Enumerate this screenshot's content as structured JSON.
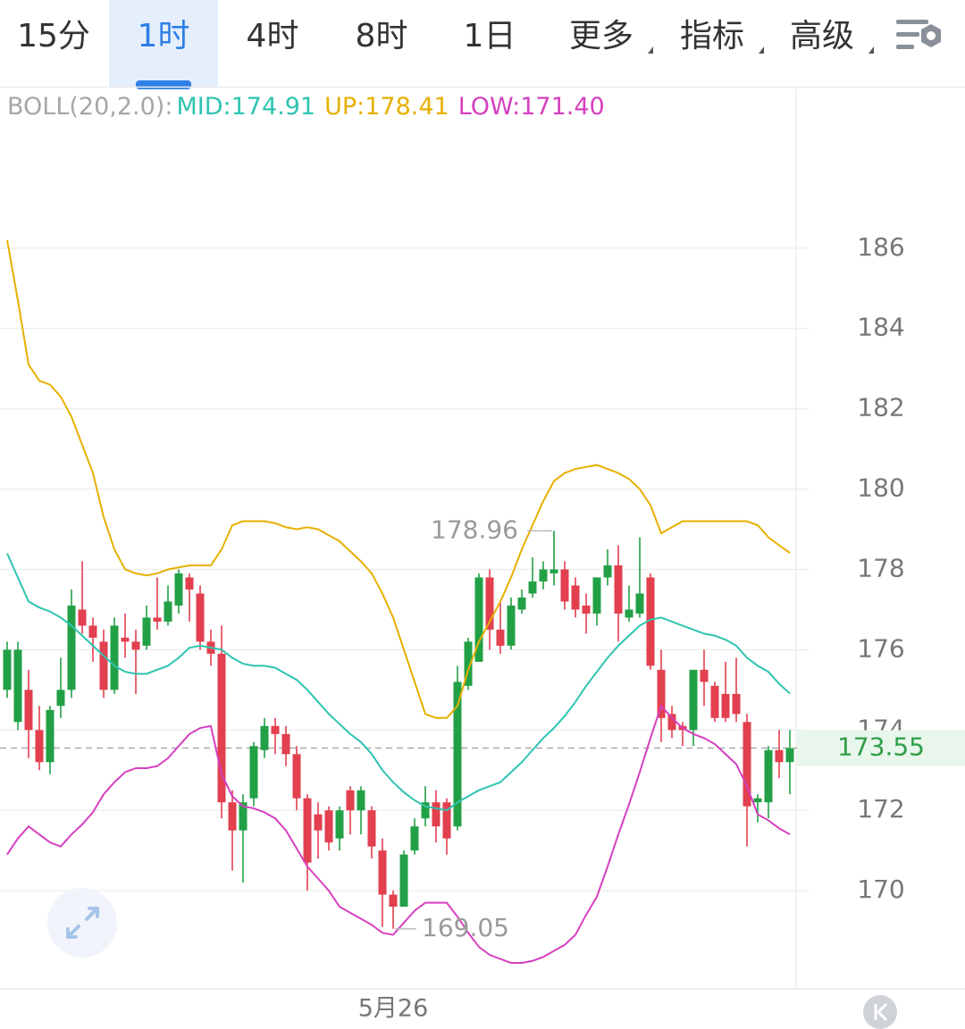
{
  "tabs": [
    {
      "label": "15分"
    },
    {
      "label": "1时"
    },
    {
      "label": "4时"
    },
    {
      "label": "8时"
    },
    {
      "label": "1日"
    },
    {
      "label": "更多",
      "dropdown": true
    },
    {
      "label": "指标",
      "dropdown": true
    },
    {
      "label": "高级",
      "dropdown": true
    }
  ],
  "active_tab": 1,
  "chart_data": {
    "type": "candlestick",
    "indicator": {
      "label": "BOLL(20,2.0):",
      "items": [
        {
          "name": "MID:",
          "value": 174.91,
          "color": "#2ec4b0"
        },
        {
          "name": "UP:",
          "value": 178.41,
          "color": "#e6b000"
        },
        {
          "name": "LOW:",
          "value": 171.4,
          "value_label": "171.40",
          "color": "#d63fbf"
        }
      ]
    },
    "categories": [
      null,
      null,
      null,
      null,
      null,
      null,
      null,
      null,
      null,
      null,
      null,
      null,
      null,
      null,
      null,
      null,
      null,
      null,
      null,
      null,
      null,
      null,
      null,
      null,
      null,
      null,
      null,
      null,
      null,
      null,
      null,
      null,
      null,
      null,
      null,
      null,
      "5月26",
      null,
      null,
      null,
      null,
      null,
      null,
      null,
      null,
      null,
      null,
      null,
      null,
      null,
      null,
      null,
      null,
      null,
      null,
      null,
      null,
      null,
      null,
      null,
      null,
      null,
      null,
      null,
      null,
      null,
      null,
      null,
      null,
      null,
      null,
      null,
      null,
      null
    ],
    "open": [
      175.0,
      174.2,
      175.0,
      174.0,
      173.2,
      174.6,
      175.0,
      177.0,
      176.6,
      176.2,
      175.0,
      176.3,
      176.2,
      176.1,
      176.8,
      176.7,
      177.1,
      177.8,
      177.4,
      176.2,
      175.9,
      172.2,
      171.5,
      172.3,
      173.5,
      174.1,
      173.9,
      173.4,
      172.3,
      171.9,
      172.0,
      171.3,
      172.5,
      172.0,
      172.0,
      171.0,
      169.9,
      169.6,
      171.0,
      171.8,
      172.2,
      172.2,
      171.6,
      175.1,
      175.7,
      177.8,
      176.5,
      176.1,
      177.0,
      177.4,
      177.7,
      177.9,
      178.0,
      177.6,
      177.1,
      176.9,
      177.8,
      178.1,
      176.8,
      176.9,
      177.8,
      175.5,
      174.4,
      174.1,
      174.0,
      175.5,
      175.1,
      174.9,
      174.9,
      174.2,
      172.2,
      172.2,
      173.5,
      173.2
    ],
    "high": [
      176.2,
      176.2,
      175.5,
      174.6,
      174.6,
      175.8,
      177.5,
      178.2,
      176.8,
      176.5,
      176.8,
      176.9,
      176.5,
      177.1,
      177.8,
      177.6,
      178.0,
      177.9,
      177.6,
      176.5,
      176.6,
      172.5,
      172.4,
      173.7,
      174.3,
      174.3,
      174.1,
      173.6,
      172.4,
      172.2,
      172.1,
      172.1,
      172.6,
      172.6,
      172.1,
      171.3,
      170.0,
      171.0,
      171.8,
      172.6,
      172.5,
      172.3,
      175.6,
      176.3,
      177.9,
      178.0,
      177.2,
      177.3,
      177.5,
      178.3,
      178.2,
      178.96,
      178.2,
      177.8,
      177.4,
      177.8,
      178.5,
      178.6,
      177.6,
      178.8,
      177.9,
      176.0,
      174.6,
      174.2,
      175.5,
      176.0,
      175.2,
      175.7,
      175.8,
      174.4,
      172.4,
      173.6,
      174.0,
      174.0
    ],
    "low": [
      174.8,
      174.0,
      173.3,
      173.0,
      172.9,
      174.3,
      174.8,
      176.4,
      175.7,
      174.8,
      174.9,
      175.8,
      174.9,
      176.0,
      176.5,
      176.6,
      176.9,
      176.7,
      176.0,
      175.6,
      171.8,
      170.5,
      170.2,
      172.1,
      173.3,
      173.4,
      173.1,
      172.0,
      170.0,
      170.8,
      171.0,
      171.0,
      171.4,
      171.4,
      170.8,
      169.1,
      169.05,
      169.6,
      170.9,
      171.6,
      171.2,
      170.9,
      171.5,
      175.0,
      175.7,
      176.0,
      175.9,
      176.0,
      176.9,
      177.3,
      177.5,
      177.6,
      177.0,
      176.8,
      176.4,
      176.6,
      177.6,
      176.2,
      176.7,
      176.8,
      175.5,
      173.7,
      173.8,
      173.6,
      173.6,
      174.6,
      174.2,
      174.2,
      174.2,
      171.1,
      171.7,
      171.8,
      172.8,
      172.4
    ],
    "close": [
      176.0,
      176.0,
      174.0,
      173.2,
      174.5,
      175.0,
      177.1,
      176.6,
      176.3,
      175.0,
      176.6,
      176.2,
      176.0,
      176.8,
      176.7,
      177.2,
      177.9,
      177.5,
      176.2,
      175.9,
      172.2,
      171.5,
      172.2,
      173.6,
      174.1,
      173.9,
      173.4,
      172.3,
      170.7,
      171.5,
      171.2,
      172.0,
      172.0,
      172.5,
      171.1,
      169.9,
      169.6,
      170.9,
      171.6,
      172.2,
      171.6,
      171.3,
      175.2,
      176.2,
      177.8,
      176.5,
      176.1,
      177.1,
      177.3,
      177.7,
      178.0,
      178.0,
      177.2,
      177.0,
      176.9,
      177.8,
      178.1,
      176.9,
      177.0,
      177.4,
      175.6,
      174.3,
      174.0,
      174.0,
      175.5,
      175.2,
      174.3,
      174.3,
      174.4,
      172.1,
      172.3,
      173.5,
      173.2,
      173.55
    ],
    "up_color": "#22a046",
    "down_color": "#e23f4f",
    "series": [
      {
        "name": "UP",
        "color": "#e6b000",
        "values": [
          186.2,
          184.7,
          183.1,
          182.7,
          182.6,
          182.3,
          181.8,
          181.1,
          180.4,
          179.3,
          178.5,
          178.0,
          177.9,
          177.85,
          177.9,
          178.0,
          178.05,
          178.1,
          178.1,
          178.1,
          178.5,
          179.1,
          179.2,
          179.2,
          179.2,
          179.15,
          179.05,
          179.0,
          179.05,
          179.0,
          178.85,
          178.7,
          178.45,
          178.2,
          177.9,
          177.4,
          176.8,
          176.0,
          175.2,
          174.4,
          174.3,
          174.3,
          174.6,
          175.5,
          176.2,
          176.7,
          177.2,
          177.8,
          178.5,
          179.1,
          179.7,
          180.2,
          180.4,
          180.5,
          180.55,
          180.6,
          180.5,
          180.4,
          180.25,
          180.0,
          179.6,
          178.9,
          179.05,
          179.2,
          179.2,
          179.2,
          179.2,
          179.2,
          179.2,
          179.2,
          179.1,
          178.8,
          178.6,
          178.41
        ]
      },
      {
        "name": "MID",
        "color": "#2ec4b0",
        "values": [
          178.4,
          177.8,
          177.2,
          177.05,
          176.95,
          176.8,
          176.6,
          176.35,
          176.1,
          175.85,
          175.6,
          175.45,
          175.4,
          175.4,
          175.5,
          175.6,
          175.8,
          176.05,
          176.1,
          176.05,
          176.0,
          175.8,
          175.65,
          175.6,
          175.6,
          175.55,
          175.4,
          175.25,
          175.0,
          174.7,
          174.4,
          174.15,
          173.9,
          173.7,
          173.4,
          173.0,
          172.7,
          172.45,
          172.25,
          172.1,
          172.05,
          172.0,
          172.2,
          172.35,
          172.5,
          172.6,
          172.7,
          172.95,
          173.2,
          173.5,
          173.8,
          174.05,
          174.35,
          174.7,
          175.1,
          175.45,
          175.8,
          176.1,
          176.35,
          176.6,
          176.75,
          176.8,
          176.7,
          176.6,
          176.5,
          176.4,
          176.35,
          176.25,
          176.1,
          175.8,
          175.6,
          175.45,
          175.15,
          174.91
        ]
      },
      {
        "name": "LOW",
        "color": "#d63fbf",
        "values": [
          170.9,
          171.3,
          171.6,
          171.4,
          171.2,
          171.1,
          171.4,
          171.65,
          171.95,
          172.4,
          172.7,
          172.95,
          173.05,
          173.05,
          173.1,
          173.3,
          173.6,
          173.9,
          174.05,
          174.1,
          172.9,
          172.35,
          172.1,
          172.05,
          171.95,
          171.8,
          171.5,
          171.05,
          170.6,
          170.3,
          170.0,
          169.6,
          169.45,
          169.3,
          169.15,
          168.95,
          168.9,
          169.2,
          169.5,
          169.7,
          169.7,
          169.7,
          169.35,
          168.95,
          168.6,
          168.4,
          168.3,
          168.2,
          168.2,
          168.25,
          168.35,
          168.5,
          168.65,
          168.9,
          169.4,
          169.85,
          170.6,
          171.4,
          172.15,
          172.95,
          173.8,
          174.6,
          174.3,
          174.05,
          173.9,
          173.8,
          173.65,
          173.4,
          173.15,
          172.6,
          171.9,
          171.75,
          171.55,
          171.4
        ]
      }
    ],
    "annotations": [
      178.96,
      169.05
    ],
    "last_price": 173.55,
    "ylim": [
      167.6,
      190
    ],
    "yticks": [
      170,
      172,
      174,
      176,
      178,
      180,
      182,
      184,
      186
    ],
    "grid": true
  }
}
